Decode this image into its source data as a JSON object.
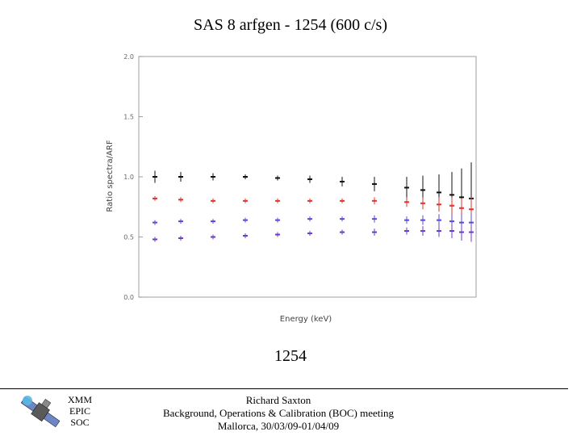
{
  "slide": {
    "title": "SAS 8 arfgen  -  1254 (600 c/s)",
    "caption": "1254"
  },
  "footer": {
    "org": [
      "XMM",
      "EPIC",
      "SOC"
    ],
    "credits": [
      "Richard Saxton",
      "Background, Operations & Calibration (BOC) meeting",
      "Mallorca, 30/03/09-01/04/09"
    ]
  },
  "chart_data": {
    "type": "scatter",
    "title": "",
    "xlabel": "Energy (keV)",
    "ylabel": "Ratio spectra/ARF",
    "ylim": [
      0,
      2
    ],
    "yticks": [
      "0.0",
      "0.5",
      "1.0",
      "1.5",
      "2.0"
    ],
    "xscale": "log",
    "grid": false,
    "note": "Four series of ratio points with error bars; x values estimated on a 0-1 normalized energy axis (x tick labels not legible).",
    "series": [
      {
        "color": "#111111",
        "x": [
          0.02,
          0.1,
          0.2,
          0.3,
          0.4,
          0.5,
          0.6,
          0.7,
          0.8,
          0.85,
          0.9,
          0.94,
          0.97,
          1.0
        ],
        "y": [
          1.0,
          1.0,
          1.0,
          1.0,
          0.99,
          0.98,
          0.96,
          0.94,
          0.91,
          0.89,
          0.87,
          0.85,
          0.83,
          0.82
        ],
        "err": [
          0.05,
          0.04,
          0.03,
          0.02,
          0.02,
          0.03,
          0.04,
          0.06,
          0.09,
          0.12,
          0.15,
          0.19,
          0.24,
          0.3
        ]
      },
      {
        "color": "#e03030",
        "x": [
          0.02,
          0.1,
          0.2,
          0.3,
          0.4,
          0.5,
          0.6,
          0.7,
          0.8,
          0.85,
          0.9,
          0.94,
          0.97,
          1.0
        ],
        "y": [
          0.82,
          0.81,
          0.8,
          0.8,
          0.8,
          0.8,
          0.8,
          0.8,
          0.79,
          0.78,
          0.77,
          0.76,
          0.74,
          0.73
        ],
        "err": [
          0.02,
          0.02,
          0.02,
          0.02,
          0.02,
          0.02,
          0.02,
          0.03,
          0.04,
          0.05,
          0.06,
          0.07,
          0.08,
          0.1
        ]
      },
      {
        "color": "#5a4ad8",
        "x": [
          0.02,
          0.1,
          0.2,
          0.3,
          0.4,
          0.5,
          0.6,
          0.7,
          0.8,
          0.85,
          0.9,
          0.94,
          0.97,
          1.0
        ],
        "y": [
          0.62,
          0.63,
          0.63,
          0.64,
          0.64,
          0.65,
          0.65,
          0.65,
          0.64,
          0.64,
          0.64,
          0.63,
          0.62,
          0.62
        ],
        "err": [
          0.02,
          0.02,
          0.02,
          0.02,
          0.02,
          0.02,
          0.02,
          0.03,
          0.03,
          0.04,
          0.05,
          0.06,
          0.07,
          0.08
        ]
      },
      {
        "color": "#6a3ec8",
        "x": [
          0.02,
          0.1,
          0.2,
          0.3,
          0.4,
          0.5,
          0.6,
          0.7,
          0.8,
          0.85,
          0.9,
          0.94,
          0.97,
          1.0
        ],
        "y": [
          0.48,
          0.49,
          0.5,
          0.51,
          0.52,
          0.53,
          0.54,
          0.54,
          0.55,
          0.55,
          0.55,
          0.55,
          0.54,
          0.54
        ],
        "err": [
          0.02,
          0.02,
          0.02,
          0.02,
          0.02,
          0.02,
          0.02,
          0.03,
          0.03,
          0.04,
          0.05,
          0.06,
          0.07,
          0.08
        ]
      }
    ]
  }
}
